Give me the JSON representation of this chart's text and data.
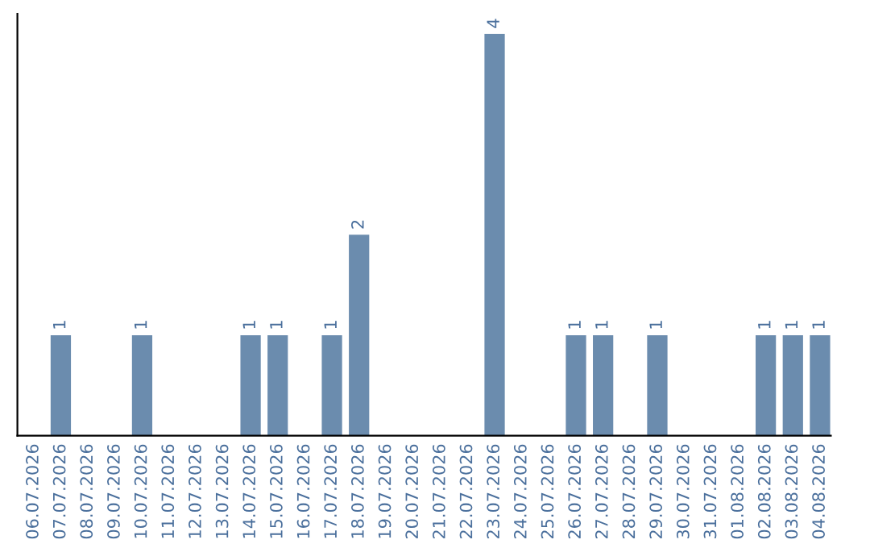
{
  "chart_data": {
    "type": "bar",
    "categories": [
      "06.07.2026",
      "07.07.2026",
      "08.07.2026",
      "09.07.2026",
      "10.07.2026",
      "11.07.2026",
      "12.07.2026",
      "13.07.2026",
      "14.07.2026",
      "15.07.2026",
      "16.07.2026",
      "17.07.2026",
      "18.07.2026",
      "19.07.2026",
      "20.07.2026",
      "21.07.2026",
      "22.07.2026",
      "23.07.2026",
      "24.07.2026",
      "25.07.2026",
      "26.07.2026",
      "27.07.2026",
      "28.07.2026",
      "29.07.2026",
      "30.07.2026",
      "31.07.2026",
      "01.08.2026",
      "02.08.2026",
      "03.08.2026",
      "04.08.2026"
    ],
    "values": [
      0,
      1,
      0,
      0,
      1,
      0,
      0,
      0,
      1,
      1,
      0,
      1,
      2,
      0,
      0,
      0,
      0,
      4,
      0,
      0,
      1,
      1,
      0,
      1,
      0,
      0,
      0,
      1,
      1,
      1
    ],
    "value_labels": [
      null,
      "1",
      null,
      null,
      "1",
      null,
      null,
      null,
      "1",
      "1",
      null,
      "1",
      "2",
      null,
      null,
      null,
      null,
      "4",
      null,
      null,
      "1",
      "1",
      null,
      "1",
      null,
      null,
      null,
      "1",
      "1",
      "1"
    ],
    "color": "#6b8cae",
    "ylim": [
      0,
      4.2
    ],
    "tick_labels": "x",
    "grid": false,
    "legend": false
  }
}
